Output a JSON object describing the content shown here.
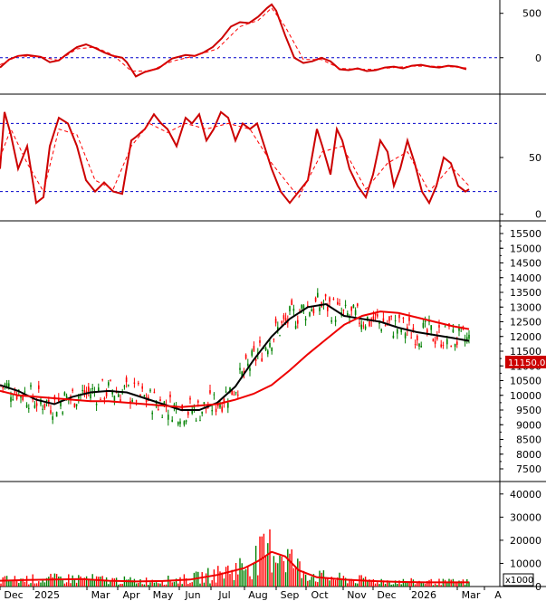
{
  "chart_data": [
    {
      "type": "line",
      "panel": "macd",
      "y_ticks": [
        500,
        0
      ],
      "ylim": [
        -400,
        650
      ],
      "reference_lines": [
        0
      ],
      "grid": false,
      "series": [
        {
          "color": "#cc0000",
          "style": "solid",
          "x": [
            0,
            10,
            20,
            30,
            45,
            55,
            65,
            75,
            85,
            95,
            105,
            115,
            125,
            135,
            140,
            150,
            160,
            175,
            190,
            205,
            215,
            225,
            235,
            245,
            255,
            265,
            275,
            285,
            295,
            300,
            305,
            315,
            325,
            335,
            345,
            355,
            365,
            375,
            385,
            395,
            405,
            415,
            425,
            435,
            445,
            455,
            465,
            475,
            485,
            495,
            505,
            515
          ],
          "y": [
            -110,
            -20,
            20,
            30,
            10,
            -50,
            -30,
            50,
            120,
            150,
            110,
            60,
            20,
            0,
            -50,
            -210,
            -160,
            -120,
            -10,
            30,
            20,
            60,
            120,
            220,
            350,
            400,
            390,
            460,
            560,
            600,
            530,
            250,
            0,
            -60,
            -40,
            0,
            -40,
            -130,
            -140,
            -120,
            -150,
            -140,
            -110,
            -100,
            -120,
            -90,
            -80,
            -100,
            -110,
            -90,
            -100,
            -130
          ]
        },
        {
          "color": "#ff0000",
          "style": "dashed",
          "x": [
            0,
            20,
            45,
            65,
            85,
            105,
            125,
            145,
            165,
            190,
            215,
            240,
            265,
            285,
            300,
            315,
            335,
            355,
            375,
            395,
            415,
            435,
            455,
            475,
            495,
            515
          ],
          "y": [
            -80,
            20,
            10,
            -30,
            100,
            120,
            30,
            -150,
            -150,
            -40,
            20,
            100,
            350,
            420,
            560,
            350,
            -20,
            -20,
            -120,
            -130,
            -130,
            -110,
            -95,
            -95,
            -100,
            -115
          ]
        }
      ]
    },
    {
      "type": "line",
      "panel": "stochastic",
      "y_ticks": [
        50,
        0
      ],
      "ylim": [
        -5,
        105
      ],
      "reference_lines": [
        80,
        20
      ],
      "grid": false,
      "series": [
        {
          "color": "#cc0000",
          "style": "solid",
          "x": [
            0,
            5,
            12,
            20,
            30,
            40,
            48,
            55,
            65,
            75,
            85,
            95,
            105,
            115,
            125,
            135,
            145,
            150,
            160,
            170,
            178,
            185,
            195,
            205,
            212,
            220,
            228,
            236,
            244,
            252,
            260,
            268,
            276,
            284,
            292,
            300,
            310,
            320,
            330,
            340,
            350,
            356,
            365,
            372,
            378,
            386,
            395,
            404,
            412,
            420,
            428,
            435,
            442,
            450,
            458,
            466,
            474,
            482,
            490,
            498,
            506,
            514,
            518
          ],
          "y": [
            40,
            90,
            70,
            40,
            60,
            10,
            15,
            60,
            85,
            80,
            60,
            30,
            20,
            28,
            20,
            18,
            65,
            68,
            75,
            88,
            80,
            75,
            60,
            85,
            80,
            88,
            65,
            75,
            90,
            85,
            65,
            80,
            75,
            80,
            60,
            40,
            20,
            10,
            20,
            30,
            75,
            60,
            35,
            75,
            65,
            40,
            25,
            15,
            35,
            65,
            55,
            25,
            40,
            65,
            45,
            20,
            10,
            25,
            50,
            45,
            25,
            20,
            22
          ]
        },
        {
          "color": "#ff0000",
          "style": "dashed",
          "x": [
            0,
            12,
            30,
            48,
            65,
            85,
            105,
            125,
            145,
            165,
            185,
            205,
            228,
            252,
            276,
            300,
            330,
            356,
            378,
            404,
            428,
            450,
            474,
            498,
            518
          ],
          "y": [
            50,
            75,
            45,
            20,
            75,
            70,
            30,
            22,
            60,
            80,
            72,
            80,
            75,
            80,
            75,
            45,
            15,
            55,
            60,
            22,
            45,
            55,
            20,
            42,
            25
          ]
        }
      ]
    },
    {
      "type": "line",
      "panel": "price",
      "y_ticks": [
        15500,
        15000,
        14500,
        14000,
        13500,
        13000,
        12500,
        12000,
        11500,
        11000,
        10500,
        10000,
        9500,
        9000,
        8500,
        8000,
        7500
      ],
      "ylim": [
        7100,
        15900
      ],
      "last_price": "11150.00",
      "grid": false,
      "series": [
        {
          "kind": "moving_average",
          "color": "#000000",
          "x": [
            0,
            20,
            40,
            60,
            80,
            100,
            120,
            140,
            160,
            180,
            200,
            220,
            240,
            260,
            280,
            300,
            320,
            340,
            360,
            380,
            400,
            420,
            440,
            460,
            480,
            500,
            518
          ],
          "y": [
            10350,
            10150,
            9850,
            9700,
            9950,
            10100,
            10150,
            10100,
            9900,
            9700,
            9500,
            9500,
            9750,
            10300,
            11200,
            12000,
            12600,
            13000,
            13100,
            12700,
            12600,
            12500,
            12300,
            12150,
            12050,
            11950,
            11850
          ]
        },
        {
          "kind": "moving_average",
          "color": "#ee0000",
          "x": [
            0,
            20,
            40,
            60,
            80,
            100,
            120,
            140,
            160,
            180,
            200,
            220,
            240,
            260,
            280,
            300,
            320,
            340,
            360,
            380,
            400,
            420,
            440,
            460,
            480,
            500,
            518
          ],
          "y": [
            10150,
            10000,
            9950,
            9900,
            9850,
            9800,
            9800,
            9750,
            9700,
            9650,
            9600,
            9650,
            9700,
            9850,
            10050,
            10350,
            10850,
            11400,
            11900,
            12400,
            12700,
            12850,
            12800,
            12650,
            12500,
            12350,
            12250
          ]
        }
      ]
    },
    {
      "type": "bar",
      "panel": "volume",
      "y_ticks": [
        40000,
        30000,
        20000,
        10000,
        0
      ],
      "ylim": [
        0,
        45000
      ],
      "unit_label": "x1000",
      "grid": false,
      "series": [
        {
          "kind": "moving_average",
          "color": "#ee0000",
          "x": [
            0,
            30,
            60,
            90,
            120,
            150,
            180,
            210,
            240,
            270,
            285,
            300,
            315,
            330,
            350,
            380,
            410,
            440,
            470,
            500,
            518
          ],
          "y": [
            2500,
            2800,
            3000,
            3200,
            2500,
            2200,
            2400,
            3000,
            5000,
            8000,
            11000,
            15000,
            13000,
            7000,
            4000,
            3000,
            2400,
            2000,
            1800,
            1800,
            1800
          ]
        }
      ]
    }
  ],
  "x_axis": {
    "tick_labels": [
      "Dec",
      "2025",
      "Mar",
      "Apr",
      "May",
      "Jun",
      "Jul",
      "Aug",
      "Sep",
      "Oct",
      "Nov",
      "Dec",
      "2026",
      "Mar",
      "A"
    ]
  },
  "colors": {
    "up": "#008000",
    "down": "#ff0000",
    "ma_fast": "#000000",
    "ma_slow": "#ee0000",
    "reference": "#0000cc",
    "price_tag_bg": "#cc0000",
    "price_tag_text": "#ffffff"
  }
}
